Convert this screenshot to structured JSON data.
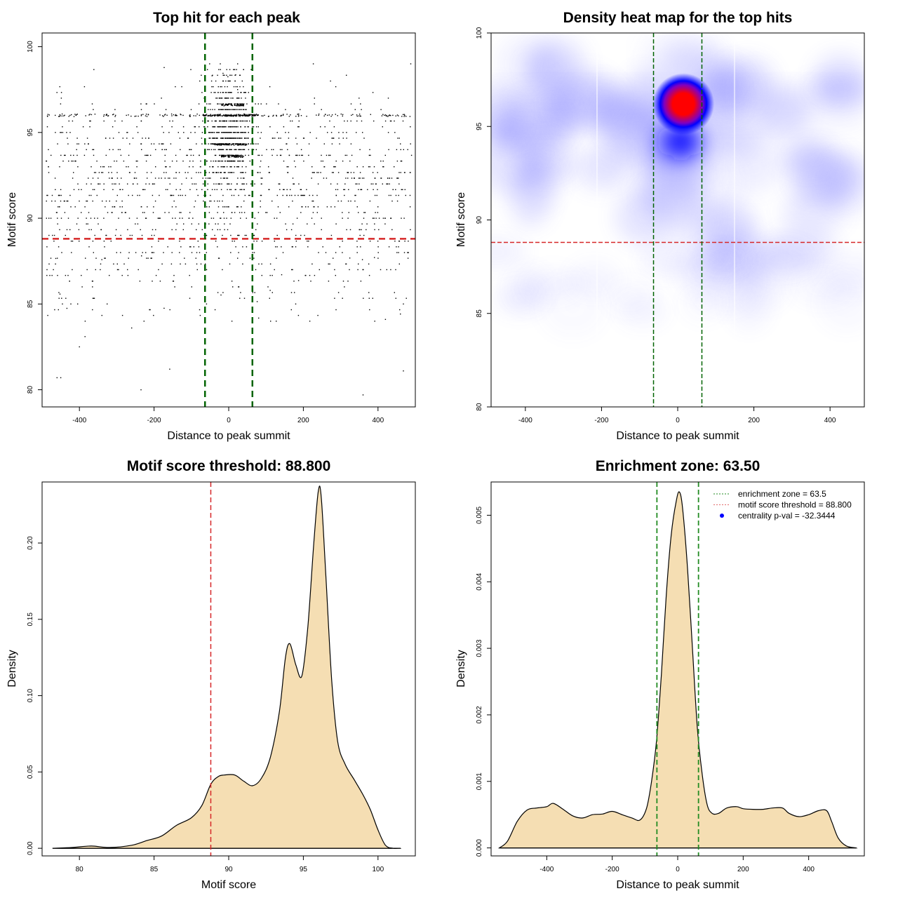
{
  "chart_data": [
    {
      "id": "scatter",
      "type": "scatter",
      "title": "Top hit for each peak",
      "xlabel": "Distance to peak summit",
      "ylabel": "Motif score",
      "xlim": [
        -500,
        500
      ],
      "ylim": [
        79,
        100.8
      ],
      "xticks": [
        -400,
        -200,
        0,
        200,
        400
      ],
      "yticks": [
        80,
        85,
        90,
        95,
        100
      ],
      "hlines": [
        {
          "y": 88.8,
          "color": "#d62728",
          "style": "dashed",
          "label": "motif score threshold"
        }
      ],
      "vlines": [
        {
          "x": -63.5,
          "color": "#006400",
          "style": "dashed"
        },
        {
          "x": 63.5,
          "color": "#006400",
          "style": "dashed"
        }
      ],
      "point_color": "#000000",
      "points_description": "About 2000 top-hit points spread across -490..490; dense column within the enrichment zone (-63.5..63.5) around scores 93-97, horizontal bands at score ~96.0 and ~94.3",
      "bands": [
        96.0,
        94.3,
        96.6,
        93.6
      ],
      "sparse_outliers": [
        [
          -460,
          80.7
        ],
        [
          -450,
          80.7
        ],
        [
          -235,
          80.0
        ],
        [
          -158,
          81.2
        ],
        [
          360,
          79.7
        ],
        [
          468,
          81.1
        ],
        [
          -400,
          82.5
        ],
        [
          -385,
          83.1
        ],
        [
          -260,
          83.6
        ],
        [
          420,
          84.1
        ]
      ]
    },
    {
      "id": "heatmap",
      "type": "heatmap",
      "title": "Density heat map for the top hits",
      "xlabel": "Distance to peak summit",
      "ylabel": "Motif score",
      "xlim": [
        -490,
        490
      ],
      "ylim": [
        80,
        100
      ],
      "xticks": [
        -400,
        -200,
        0,
        200,
        400
      ],
      "yticks": [
        80,
        85,
        90,
        95,
        100
      ],
      "colorscale": [
        "#ffffff",
        "#0000ff",
        "#ff0000"
      ],
      "hotspots": [
        {
          "x": 15,
          "y": 96.2,
          "intensity": 1.0
        },
        {
          "x": 8,
          "y": 94.2,
          "intensity": 0.6
        },
        {
          "x": 5,
          "y": 90.0,
          "intensity": 0.12
        }
      ],
      "hlines": [
        {
          "y": 88.8,
          "color": "#d62728",
          "style": "dashed"
        }
      ],
      "vlines": [
        {
          "x": -63.5,
          "color": "#006400",
          "style": "dashed"
        },
        {
          "x": 63.5,
          "color": "#006400",
          "style": "dashed"
        }
      ]
    },
    {
      "id": "score-density",
      "type": "area",
      "title": "Motif score threshold: 88.800",
      "xlabel": "Motif score",
      "ylabel": "Density",
      "xlim": [
        77.5,
        102.5
      ],
      "ylim": [
        -0.005,
        0.24
      ],
      "xticks": [
        80,
        85,
        90,
        95,
        100
      ],
      "yticks": [
        0.0,
        0.05,
        0.1,
        0.15,
        0.2
      ],
      "ytick_labels": [
        "0.00",
        "0.05",
        "0.10",
        "0.15",
        "0.20"
      ],
      "fill": "#f5deb3",
      "x": [
        78.2,
        79.5,
        80.8,
        82.0,
        83.5,
        84.5,
        85.5,
        86.5,
        87.5,
        88.2,
        88.8,
        89.3,
        89.7,
        90.4,
        91.0,
        91.6,
        92.2,
        92.8,
        93.4,
        93.8,
        94.1,
        94.5,
        94.9,
        95.3,
        95.7,
        96.0,
        96.2,
        96.5,
        96.9,
        97.3,
        97.8,
        98.4,
        99.0,
        99.5,
        100.0,
        100.5,
        101.0,
        101.5
      ],
      "y": [
        0.0,
        0.0005,
        0.0015,
        0.0005,
        0.002,
        0.005,
        0.008,
        0.015,
        0.02,
        0.028,
        0.042,
        0.047,
        0.048,
        0.048,
        0.044,
        0.041,
        0.046,
        0.06,
        0.09,
        0.125,
        0.134,
        0.12,
        0.113,
        0.145,
        0.2,
        0.234,
        0.23,
        0.18,
        0.11,
        0.07,
        0.055,
        0.045,
        0.035,
        0.025,
        0.012,
        0.002,
        0.0,
        0.0
      ],
      "vlines": [
        {
          "x": 88.8,
          "color": "#d62728",
          "style": "dashed"
        }
      ]
    },
    {
      "id": "distance-density",
      "type": "area",
      "title": "Enrichment zone: 63.50",
      "xlabel": "Distance to peak summit",
      "ylabel": "Density",
      "xlim": [
        -570,
        570
      ],
      "ylim": [
        -0.00012,
        0.0055
      ],
      "xticks": [
        -400,
        -200,
        0,
        200,
        400
      ],
      "yticks": [
        0.0,
        0.001,
        0.002,
        0.003,
        0.004,
        0.005
      ],
      "ytick_labels": [
        "0.000",
        "0.001",
        "0.002",
        "0.003",
        "0.004",
        "0.005"
      ],
      "fill": "#f5deb3",
      "x": [
        -545,
        -520,
        -490,
        -460,
        -430,
        -400,
        -380,
        -350,
        -320,
        -290,
        -260,
        -230,
        -200,
        -170,
        -140,
        -115,
        -95,
        -80,
        -65,
        -50,
        -35,
        -20,
        -5,
        5,
        15,
        30,
        45,
        60,
        75,
        90,
        105,
        125,
        150,
        180,
        200,
        230,
        260,
        290,
        320,
        340,
        370,
        400,
        430,
        455,
        470,
        490,
        515,
        545
      ],
      "y": [
        0.0,
        0.0001,
        0.0004,
        0.00057,
        0.0006,
        0.00062,
        0.00067,
        0.00058,
        0.00048,
        0.00045,
        0.0005,
        0.00051,
        0.00055,
        0.0005,
        0.00045,
        0.00042,
        0.0006,
        0.001,
        0.0016,
        0.0026,
        0.0038,
        0.0047,
        0.0052,
        0.00535,
        0.0051,
        0.0042,
        0.003,
        0.0018,
        0.0011,
        0.00065,
        0.00052,
        0.00052,
        0.0006,
        0.00062,
        0.00059,
        0.00058,
        0.00058,
        0.0006,
        0.0006,
        0.00052,
        0.00047,
        0.0005,
        0.00056,
        0.00056,
        0.0004,
        0.00015,
        3e-05,
        0.0
      ],
      "vlines": [
        {
          "x": -63.5,
          "color": "#228b22",
          "style": "dashed"
        },
        {
          "x": 63.5,
          "color": "#228b22",
          "style": "dashed"
        }
      ],
      "legend": {
        "position": "top-right",
        "entries": [
          {
            "label": "enrichment zone = 63.5",
            "color": "#228b22",
            "marker": "dotted-line"
          },
          {
            "label": "motif score threshold = 88.800",
            "color": "#e36b6b",
            "marker": "dotted-line"
          },
          {
            "label": "centrality p-val = -32.3444",
            "color": "#0000ff",
            "marker": "dot"
          }
        ]
      }
    }
  ]
}
